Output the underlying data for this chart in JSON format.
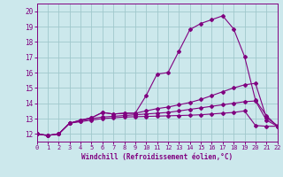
{
  "xlabel": "Windchill (Refroidissement éolien,°C)",
  "bg_color": "#cce8ec",
  "line_color": "#800080",
  "grid_color": "#a0c8cc",
  "xlim": [
    0,
    22
  ],
  "ylim": [
    11.5,
    20.5
  ],
  "xticks": [
    0,
    1,
    2,
    3,
    4,
    5,
    6,
    7,
    8,
    9,
    10,
    11,
    12,
    13,
    14,
    15,
    16,
    17,
    18,
    19,
    20,
    21,
    22
  ],
  "yticks": [
    12,
    13,
    14,
    15,
    16,
    17,
    18,
    19,
    20
  ],
  "line1_x": [
    0,
    1,
    2,
    3,
    4,
    5,
    6,
    7,
    8,
    9,
    10,
    11,
    12,
    13,
    14,
    15,
    16,
    17,
    18,
    19,
    20,
    21,
    22
  ],
  "line1_y": [
    12.0,
    11.9,
    12.0,
    12.7,
    12.9,
    13.05,
    13.4,
    13.3,
    13.35,
    13.35,
    14.5,
    15.9,
    16.0,
    17.4,
    18.8,
    19.2,
    19.45,
    19.7,
    18.85,
    17.05,
    14.2,
    13.2,
    12.5
  ],
  "line2_x": [
    0,
    1,
    2,
    3,
    4,
    5,
    6,
    7,
    8,
    9,
    10,
    11,
    12,
    13,
    14,
    15,
    16,
    17,
    18,
    19,
    20,
    21,
    22
  ],
  "line2_y": [
    12.0,
    11.9,
    12.0,
    12.7,
    12.9,
    13.05,
    13.4,
    13.3,
    13.35,
    13.35,
    13.5,
    13.65,
    13.75,
    13.9,
    14.05,
    14.25,
    14.5,
    14.75,
    15.0,
    15.2,
    15.3,
    13.05,
    12.55
  ],
  "line3_x": [
    0,
    1,
    2,
    3,
    4,
    5,
    6,
    7,
    8,
    9,
    10,
    11,
    12,
    13,
    14,
    15,
    16,
    17,
    18,
    19,
    20,
    21,
    22
  ],
  "line3_y": [
    12.0,
    11.9,
    12.0,
    12.7,
    12.85,
    13.0,
    13.1,
    13.15,
    13.2,
    13.25,
    13.3,
    13.35,
    13.4,
    13.5,
    13.6,
    13.7,
    13.8,
    13.9,
    14.0,
    14.1,
    14.15,
    12.9,
    12.5
  ],
  "line4_x": [
    0,
    1,
    2,
    3,
    4,
    5,
    6,
    7,
    8,
    9,
    10,
    11,
    12,
    13,
    14,
    15,
    16,
    17,
    18,
    19,
    20,
    21,
    22
  ],
  "line4_y": [
    12.0,
    11.9,
    12.0,
    12.7,
    12.8,
    12.9,
    13.0,
    13.05,
    13.1,
    13.12,
    13.14,
    13.16,
    13.18,
    13.2,
    13.22,
    13.25,
    13.3,
    13.35,
    13.4,
    13.5,
    12.55,
    12.5,
    12.5
  ]
}
